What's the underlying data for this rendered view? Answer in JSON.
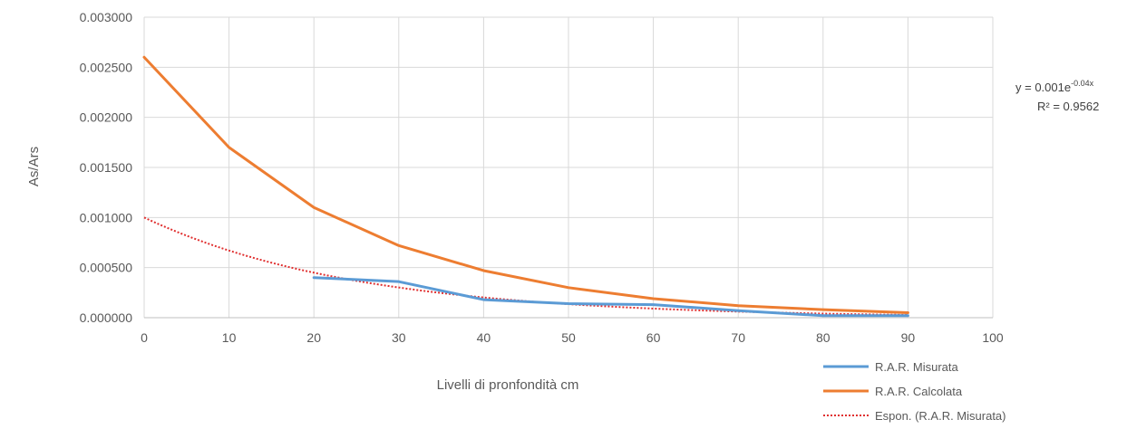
{
  "chart_data": {
    "type": "line",
    "xlabel": "Livelli di pronfondità cm",
    "ylabel": "As/Ars",
    "xlim": [
      0,
      100
    ],
    "ylim": [
      0,
      0.003
    ],
    "x_ticks": [
      "0",
      "10",
      "20",
      "30",
      "40",
      "50",
      "60",
      "70",
      "80",
      "90",
      "100"
    ],
    "y_ticks": [
      "0.000000",
      "0.000500",
      "0.001000",
      "0.001500",
      "0.002000",
      "0.002500",
      "0.003000"
    ],
    "grid": true,
    "legend_position": "bottom-right",
    "series": [
      {
        "name": "R.A.R. Misurata",
        "color": "#5b9bd5",
        "x": [
          20,
          30,
          40,
          50,
          60,
          70,
          80,
          90
        ],
        "values": [
          0.0004,
          0.00036,
          0.00018,
          0.00014,
          0.00013,
          7e-05,
          2e-05,
          2e-05
        ]
      },
      {
        "name": "R.A.R. Calcolata",
        "color": "#ed7d31",
        "x": [
          0,
          10,
          20,
          30,
          40,
          50,
          60,
          70,
          80,
          90
        ],
        "values": [
          0.0026,
          0.0017,
          0.0011,
          0.00072,
          0.00047,
          0.0003,
          0.00019,
          0.00012,
          8e-05,
          5e-05
        ]
      },
      {
        "name": "Espon. (R.A.R. Misurata)",
        "color": "#e03030",
        "dashed": true,
        "trend": {
          "a": 0.001,
          "b": -0.04,
          "x_from": 0,
          "x_to": 90
        }
      }
    ],
    "trendline_label": {
      "equation_prefix": "y = 0.001e",
      "equation_exponent": "-0.04x",
      "r2": "R² = 0.9562"
    }
  }
}
